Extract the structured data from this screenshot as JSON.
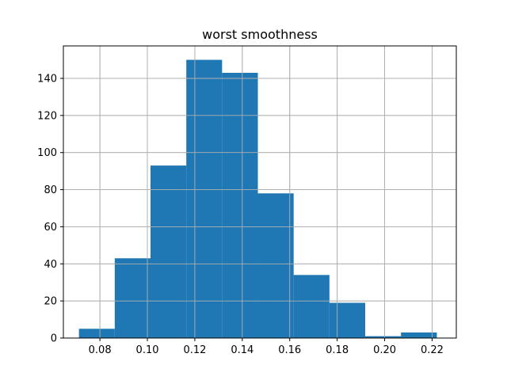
{
  "chart_data": {
    "type": "bar",
    "title": "worst smoothness",
    "xlabel": "",
    "ylabel": "",
    "xlim": [
      0.0646,
      0.2302
    ],
    "ylim": [
      0,
      157.5
    ],
    "grid": true,
    "bins": [
      {
        "x0": 0.07117,
        "x1": 0.08625,
        "count": 5
      },
      {
        "x0": 0.08625,
        "x1": 0.10133,
        "count": 43
      },
      {
        "x0": 0.10133,
        "x1": 0.11641,
        "count": 93
      },
      {
        "x0": 0.11641,
        "x1": 0.13149,
        "count": 150
      },
      {
        "x0": 0.13149,
        "x1": 0.14657,
        "count": 143
      },
      {
        "x0": 0.14657,
        "x1": 0.16165,
        "count": 78
      },
      {
        "x0": 0.16165,
        "x1": 0.17673,
        "count": 34
      },
      {
        "x0": 0.17673,
        "x1": 0.19181,
        "count": 19
      },
      {
        "x0": 0.19181,
        "x1": 0.20689,
        "count": 1
      },
      {
        "x0": 0.20689,
        "x1": 0.222,
        "count": 3
      }
    ],
    "xticks": [
      0.08,
      0.1,
      0.12,
      0.14,
      0.16,
      0.18,
      0.2,
      0.22
    ],
    "xtick_labels": [
      "0.08",
      "0.10",
      "0.12",
      "0.14",
      "0.16",
      "0.18",
      "0.20",
      "0.22"
    ],
    "yticks": [
      0,
      20,
      40,
      60,
      80,
      100,
      120,
      140
    ],
    "ytick_labels": [
      "0",
      "20",
      "40",
      "60",
      "80",
      "100",
      "120",
      "140"
    ],
    "colors": {
      "bar": "#1f77b4",
      "grid": "#b0b0b0",
      "axis": "#000000"
    }
  }
}
